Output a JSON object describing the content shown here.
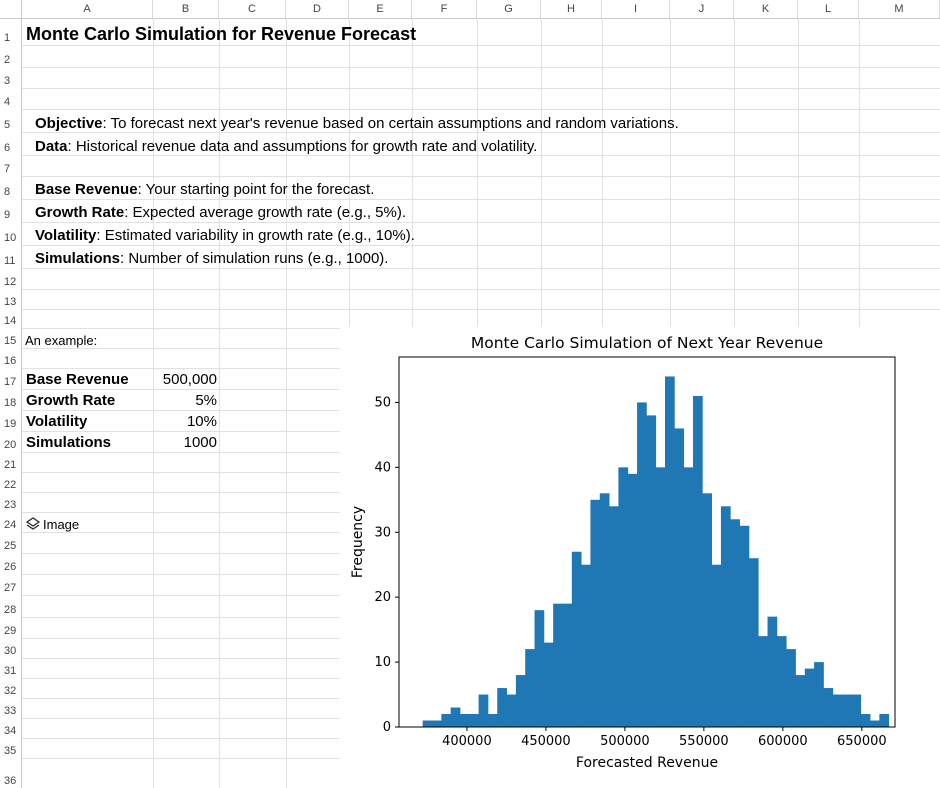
{
  "columns": [
    "A",
    "B",
    "C",
    "D",
    "E",
    "F",
    "G",
    "H",
    "I",
    "J",
    "K",
    "L",
    "M"
  ],
  "rows": [
    "1",
    "2",
    "3",
    "4",
    "5",
    "6",
    "7",
    "8",
    "9",
    "10",
    "11",
    "12",
    "13",
    "14",
    "15",
    "16",
    "17",
    "18",
    "19",
    "20",
    "21",
    "22",
    "23",
    "24",
    "25",
    "26",
    "27",
    "28",
    "29",
    "30",
    "31",
    "32",
    "33",
    "34",
    "35",
    "36"
  ],
  "title": "Monte Carlo Simulation for Revenue Forecast",
  "objective": {
    "label": "Objective",
    "text": ": To forecast next year's revenue based on certain assumptions and random variations."
  },
  "data_line": {
    "label": "Data",
    "text": ": Historical revenue data and assumptions for growth rate and volatility."
  },
  "base_revenue_desc": {
    "label": "Base Revenue",
    "text": ": Your starting point for the forecast."
  },
  "growth_rate_desc": {
    "label": "Growth Rate",
    "text": ": Expected average growth rate (e.g., 5%)."
  },
  "volatility_desc": {
    "label": "Volatility",
    "text": ": Estimated variability in growth rate (e.g., 10%)."
  },
  "simulations_desc": {
    "label": "Simulations",
    "text": ": Number of simulation runs (e.g., 1000)."
  },
  "example_label": "An example:",
  "params": [
    {
      "label": "Base Revenue",
      "value": "500,000"
    },
    {
      "label": "Growth Rate",
      "value": "5%"
    },
    {
      "label": "Volatility",
      "value": "10%"
    },
    {
      "label": "Simulations",
      "value": "1000"
    }
  ],
  "image_label": "Image",
  "image_icon": "layers-icon",
  "chart_data": {
    "type": "bar",
    "title": "Monte Carlo Simulation of Next Year Revenue",
    "xlabel": "Forecasted Revenue",
    "ylabel": "Frequency",
    "xlim": [
      357000,
      671000
    ],
    "ylim": [
      0,
      57
    ],
    "xticks": [
      400000,
      450000,
      500000,
      550000,
      600000,
      650000
    ],
    "yticks": [
      0,
      10,
      20,
      30,
      40,
      50
    ],
    "bin_start": 372000,
    "bin_width": 5900,
    "values": [
      1,
      1,
      2,
      3,
      2,
      2,
      5,
      2,
      6,
      5,
      8,
      12,
      18,
      13,
      19,
      19,
      27,
      25,
      35,
      36,
      34,
      40,
      39,
      50,
      48,
      40,
      54,
      46,
      40,
      51,
      36,
      25,
      34,
      32,
      31,
      26,
      14,
      17,
      14,
      12,
      8,
      9,
      10,
      6,
      5,
      5,
      5,
      2,
      1,
      2
    ],
    "color": "#1f77b4",
    "grid": false
  }
}
